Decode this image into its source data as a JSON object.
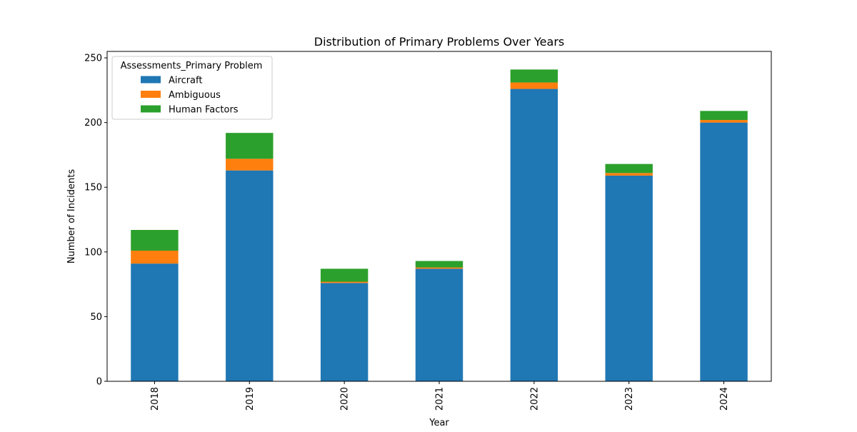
{
  "chart_data": {
    "type": "bar",
    "stacked": true,
    "title": "Distribution of Primary Problems Over Years",
    "xlabel": "Year",
    "ylabel": "Number of Incidents",
    "categories": [
      "2018",
      "2019",
      "2020",
      "2021",
      "2022",
      "2023",
      "2024"
    ],
    "series": [
      {
        "name": "Aircraft",
        "color": "#1f77b4",
        "values": [
          91,
          163,
          76,
          87,
          226,
          159,
          200
        ]
      },
      {
        "name": "Ambiguous",
        "color": "#ff7f0e",
        "values": [
          10,
          9,
          1,
          1,
          5,
          2,
          2
        ]
      },
      {
        "name": "Human Factors",
        "color": "#2ca02c",
        "values": [
          16,
          20,
          10,
          5,
          10,
          7,
          7
        ]
      }
    ],
    "ylim": [
      0,
      255
    ],
    "yticks": [
      0,
      50,
      100,
      150,
      200,
      250
    ],
    "legend": {
      "title": "Assessments_Primary Problem",
      "position": "top-left"
    },
    "grid": false
  }
}
